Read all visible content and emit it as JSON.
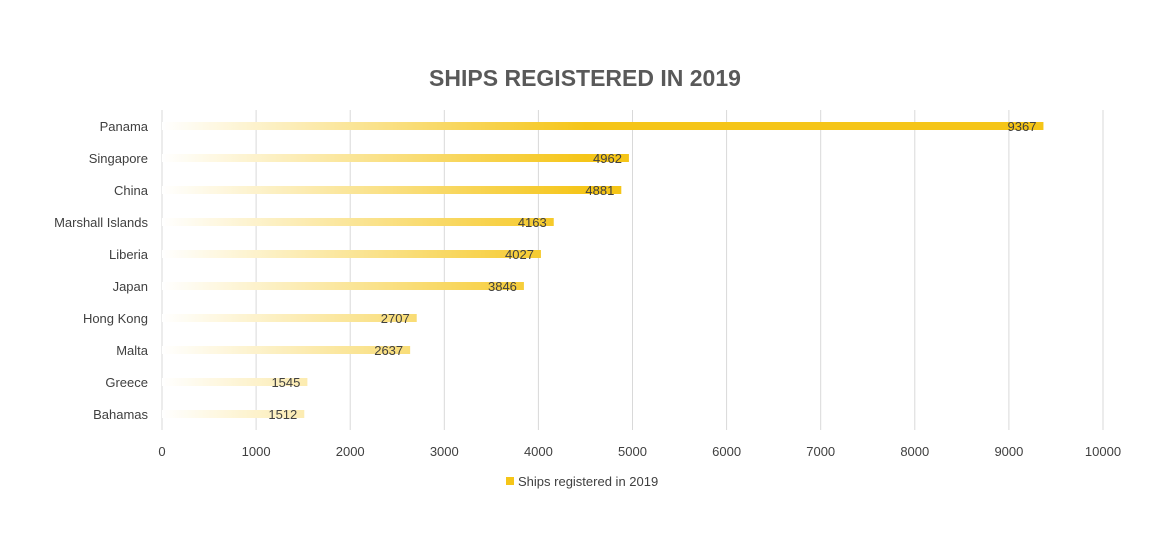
{
  "chart_data": {
    "type": "bar",
    "orientation": "horizontal",
    "title": "SHIPS REGISTERED IN 2019",
    "categories": [
      "Panama",
      "Singapore",
      "China",
      "Marshall Islands",
      "Liberia",
      "Japan",
      "Hong Kong",
      "Malta",
      "Greece",
      "Bahamas"
    ],
    "series": [
      {
        "name": "Ships registered in 2019",
        "values": [
          9367,
          4962,
          4881,
          4163,
          4027,
          3846,
          2707,
          2637,
          1545,
          1512
        ]
      }
    ],
    "data_labels": [
      "9367",
      "4962",
      "4881",
      "4163",
      "4027",
      "3846",
      "2707",
      "2637",
      "1545",
      "1512"
    ],
    "x_ticks": [
      "0",
      "1000",
      "2000",
      "3000",
      "4000",
      "5000",
      "6000",
      "7000",
      "8000",
      "9000",
      "10000"
    ],
    "xlim": [
      0,
      10000
    ],
    "xlabel": "",
    "ylabel": "",
    "grid": true,
    "legend_position": "bottom",
    "colors": {
      "bar": "#F5C518",
      "bar_fade": "#FFFFFF",
      "grid": "#D9D9D9",
      "title": "#595959",
      "text": "#404040"
    }
  }
}
